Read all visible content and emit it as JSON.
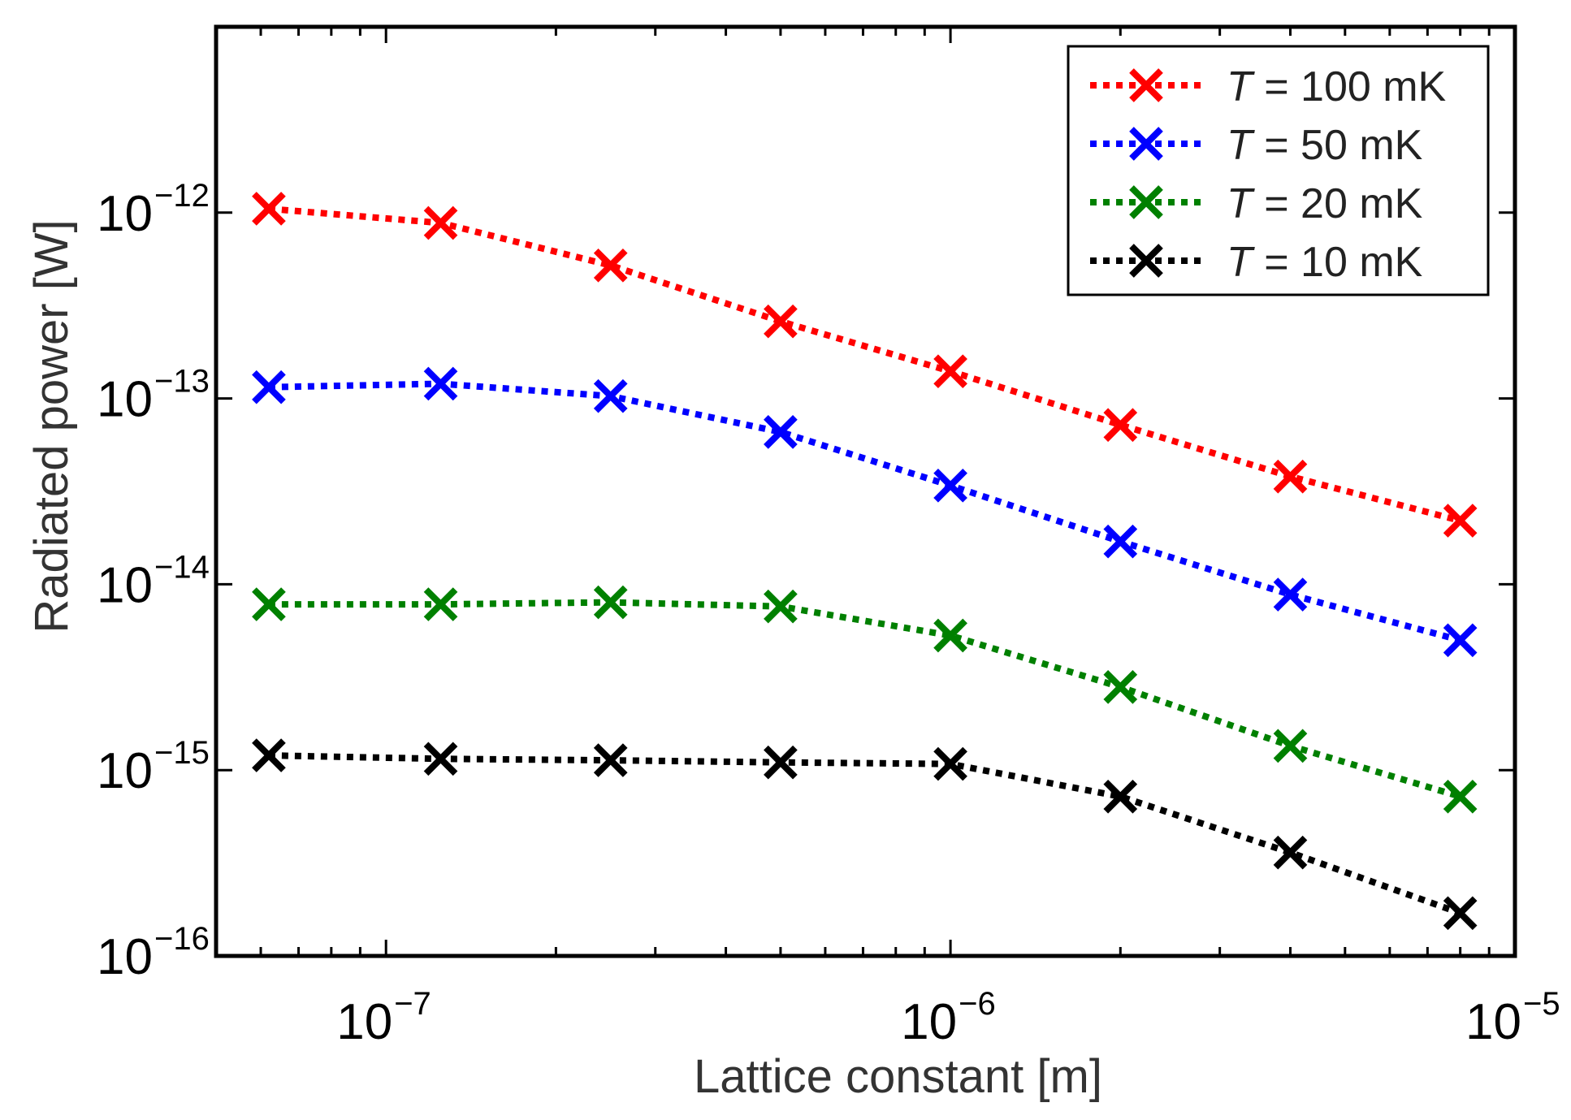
{
  "chart_data": {
    "type": "line",
    "title": "",
    "xlabel": "Lattice constant [m]",
    "ylabel": "Radiated power [W]",
    "xscale": "log",
    "yscale": "log",
    "xlim": [
      5e-08,
      1e-05
    ],
    "ylim": [
      1e-16,
      1e-11
    ],
    "x_ticks": [
      {
        "value": 1e-07,
        "base": "10",
        "exp": "−7"
      },
      {
        "value": 1e-06,
        "base": "10",
        "exp": "−6"
      },
      {
        "value": 1e-05,
        "base": "10",
        "exp": "−5"
      }
    ],
    "y_ticks": [
      {
        "value": 1e-16,
        "base": "10",
        "exp": "−16"
      },
      {
        "value": 1e-15,
        "base": "10",
        "exp": "−15"
      },
      {
        "value": 1e-14,
        "base": "10",
        "exp": "−14"
      },
      {
        "value": 1e-13,
        "base": "10",
        "exp": "−13"
      },
      {
        "value": 1e-12,
        "base": "10",
        "exp": "−12"
      }
    ],
    "grid": false,
    "legend_position": "top-right",
    "x": [
      6.2e-08,
      1.25e-07,
      2.5e-07,
      5e-07,
      1e-06,
      2e-06,
      4e-06,
      8e-06
    ],
    "series": [
      {
        "name": "T = 100 mK",
        "legend_var": "T",
        "legend_rest": " = 100 mK",
        "color": "#ff0000",
        "values": [
          1.05e-12,
          8.8e-13,
          5.2e-13,
          2.6e-13,
          1.4e-13,
          7.2e-14,
          3.8e-14,
          2.2e-14
        ]
      },
      {
        "name": "T = 50 mK",
        "legend_var": "T",
        "legend_rest": " = 50 mK",
        "color": "#0000ff",
        "values": [
          1.15e-13,
          1.2e-13,
          1.03e-13,
          6.6e-14,
          3.4e-14,
          1.7e-14,
          8.8e-15,
          5e-15
        ]
      },
      {
        "name": "T = 20 mK",
        "legend_var": "T",
        "legend_rest": " = 20 mK",
        "color": "#008000",
        "values": [
          7.8e-15,
          7.8e-15,
          8e-15,
          7.6e-15,
          5.3e-15,
          2.8e-15,
          1.35e-15,
          7.2e-16
        ]
      },
      {
        "name": "T = 10 mK",
        "legend_var": "T",
        "legend_rest": " = 10 mK",
        "color": "#000000",
        "values": [
          1.2e-15,
          1.15e-15,
          1.13e-15,
          1.1e-15,
          1.08e-15,
          7.2e-16,
          3.6e-16,
          1.7e-16
        ]
      }
    ]
  }
}
